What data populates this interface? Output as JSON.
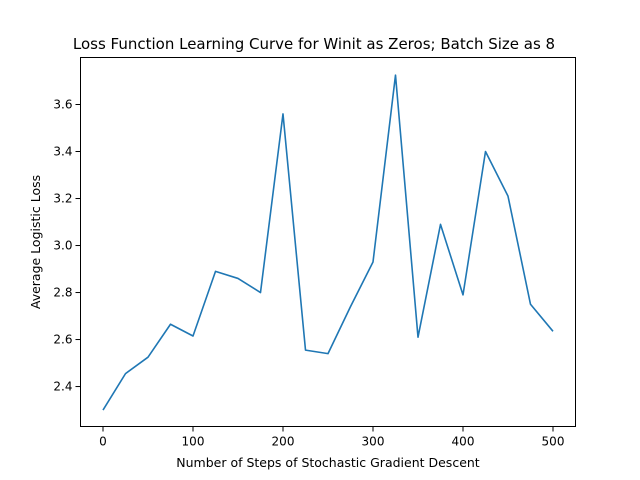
{
  "chart_data": {
    "type": "line",
    "title": "Loss Function Learning Curve for Winit as Zeros; Batch Size as 8",
    "xlabel": "Number of Steps of Stochastic Gradient Descent",
    "ylabel": "Average Logistic Loss",
    "xlim": [
      -25,
      525
    ],
    "ylim": [
      2.23,
      3.8
    ],
    "xticks": [
      0,
      100,
      200,
      300,
      400,
      500
    ],
    "xtick_labels": [
      "0",
      "100",
      "200",
      "300",
      "400",
      "500"
    ],
    "yticks": [
      2.4,
      2.6,
      2.8,
      3.0,
      3.2,
      3.4,
      3.6
    ],
    "ytick_labels": [
      "2.4",
      "2.6",
      "2.8",
      "3.0",
      "3.2",
      "3.4",
      "3.6"
    ],
    "grid": false,
    "series": [
      {
        "color": "#1f77b4",
        "x": [
          0,
          25,
          50,
          75,
          100,
          125,
          150,
          175,
          200,
          225,
          250,
          275,
          300,
          325,
          350,
          375,
          400,
          425,
          450,
          475,
          500
        ],
        "y": [
          2.3,
          2.455,
          2.525,
          2.665,
          2.615,
          2.89,
          2.86,
          2.8,
          3.56,
          2.555,
          2.54,
          2.74,
          2.93,
          3.725,
          2.61,
          3.09,
          2.79,
          3.4,
          3.21,
          2.75,
          2.635
        ]
      }
    ]
  }
}
